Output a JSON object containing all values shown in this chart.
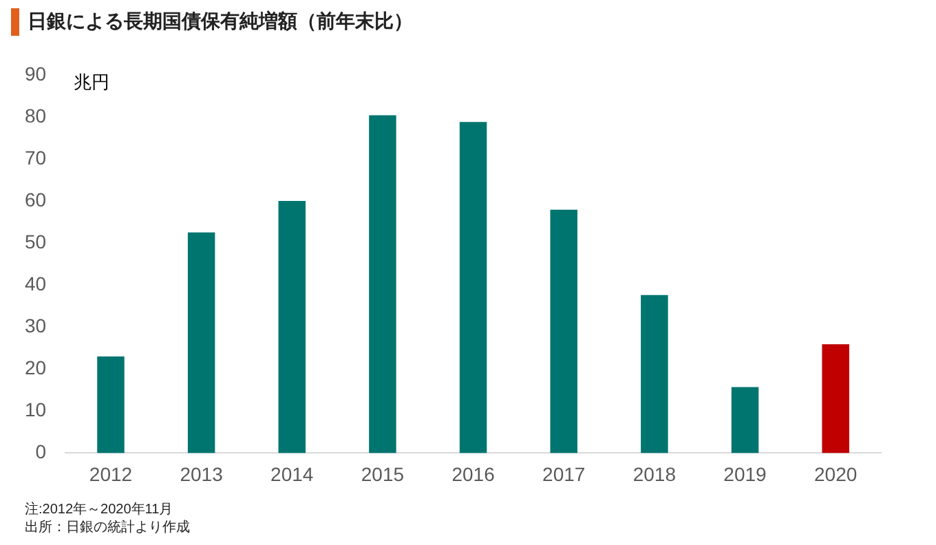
{
  "chart_data": {
    "type": "bar",
    "title": "日銀による長期国債保有純増額（前年末比）",
    "ylabel": "兆円",
    "categories": [
      "2012",
      "2013",
      "2014",
      "2015",
      "2016",
      "2017",
      "2018",
      "2019",
      "2020"
    ],
    "values": [
      23,
      52.5,
      60,
      80.4,
      78.8,
      57.9,
      37.6,
      15.7,
      25.9
    ],
    "colors": [
      "#007570",
      "#007570",
      "#007570",
      "#007570",
      "#007570",
      "#007570",
      "#007570",
      "#007570",
      "#c00000"
    ],
    "ylim": [
      0,
      90
    ],
    "yticks": [
      0,
      10,
      20,
      30,
      40,
      50,
      60,
      70,
      80,
      90
    ],
    "grid": false,
    "legend": false,
    "annotations": [
      "注:2012年～2020年11月",
      "出所：日銀の統計より作成"
    ]
  }
}
